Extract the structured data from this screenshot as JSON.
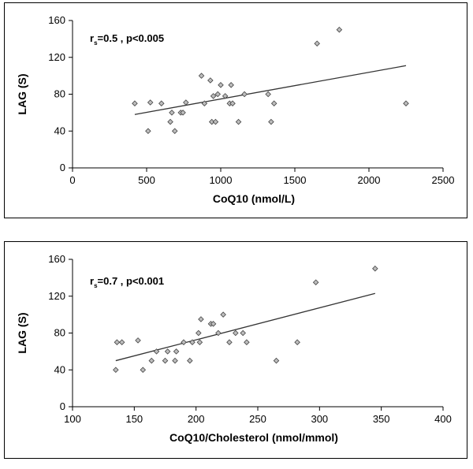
{
  "chart_data": [
    {
      "type": "scatter",
      "xlabel": "CoQ10 (nmol/L)",
      "ylabel": "LAG (S)",
      "annotation": {
        "r_main": "r",
        "r_sub": "s",
        "text": "=0.5 ,  p<0.005"
      },
      "xlim": [
        0,
        2500
      ],
      "ylim": [
        0,
        160
      ],
      "xticks": [
        0,
        500,
        1000,
        1500,
        2000,
        2500
      ],
      "yticks": [
        0,
        40,
        80,
        120,
        160
      ],
      "grid": false,
      "trendline": {
        "x": [
          420,
          2250
        ],
        "y": [
          58,
          111
        ]
      },
      "points": [
        {
          "x": 420,
          "y": 70
        },
        {
          "x": 510,
          "y": 40
        },
        {
          "x": 525,
          "y": 71
        },
        {
          "x": 600,
          "y": 70
        },
        {
          "x": 660,
          "y": 50
        },
        {
          "x": 670,
          "y": 60
        },
        {
          "x": 690,
          "y": 40
        },
        {
          "x": 730,
          "y": 60
        },
        {
          "x": 745,
          "y": 60
        },
        {
          "x": 765,
          "y": 71
        },
        {
          "x": 870,
          "y": 100
        },
        {
          "x": 890,
          "y": 70
        },
        {
          "x": 930,
          "y": 95
        },
        {
          "x": 940,
          "y": 50
        },
        {
          "x": 950,
          "y": 78
        },
        {
          "x": 965,
          "y": 50
        },
        {
          "x": 980,
          "y": 80
        },
        {
          "x": 1000,
          "y": 90
        },
        {
          "x": 1030,
          "y": 78
        },
        {
          "x": 1060,
          "y": 70
        },
        {
          "x": 1070,
          "y": 90
        },
        {
          "x": 1080,
          "y": 70
        },
        {
          "x": 1120,
          "y": 50
        },
        {
          "x": 1160,
          "y": 80
        },
        {
          "x": 1320,
          "y": 80
        },
        {
          "x": 1340,
          "y": 50
        },
        {
          "x": 1360,
          "y": 70
        },
        {
          "x": 1650,
          "y": 135
        },
        {
          "x": 1800,
          "y": 150
        },
        {
          "x": 2250,
          "y": 70
        }
      ]
    },
    {
      "type": "scatter",
      "xlabel": "CoQ10/Cholesterol (nmol/mmol)",
      "ylabel": "LAG (S)",
      "annotation": {
        "r_main": "r",
        "r_sub": "s",
        "text": "=0.7 ,  p<0.001"
      },
      "xlim": [
        100,
        400
      ],
      "ylim": [
        0,
        160
      ],
      "xticks": [
        100,
        150,
        200,
        250,
        300,
        350,
        400
      ],
      "yticks": [
        0,
        40,
        80,
        120,
        160
      ],
      "grid": false,
      "trendline": {
        "x": [
          135,
          345
        ],
        "y": [
          50,
          123
        ]
      },
      "points": [
        {
          "x": 135,
          "y": 40
        },
        {
          "x": 136,
          "y": 70
        },
        {
          "x": 140,
          "y": 70
        },
        {
          "x": 153,
          "y": 72
        },
        {
          "x": 157,
          "y": 40
        },
        {
          "x": 164,
          "y": 50
        },
        {
          "x": 168,
          "y": 60
        },
        {
          "x": 175,
          "y": 50
        },
        {
          "x": 177,
          "y": 60
        },
        {
          "x": 183,
          "y": 50
        },
        {
          "x": 184,
          "y": 60
        },
        {
          "x": 190,
          "y": 70
        },
        {
          "x": 195,
          "y": 50
        },
        {
          "x": 197,
          "y": 70
        },
        {
          "x": 202,
          "y": 80
        },
        {
          "x": 203,
          "y": 70
        },
        {
          "x": 204,
          "y": 95
        },
        {
          "x": 212,
          "y": 90
        },
        {
          "x": 214,
          "y": 90
        },
        {
          "x": 218,
          "y": 80
        },
        {
          "x": 222,
          "y": 100
        },
        {
          "x": 227,
          "y": 70
        },
        {
          "x": 232,
          "y": 80
        },
        {
          "x": 238,
          "y": 80
        },
        {
          "x": 241,
          "y": 70
        },
        {
          "x": 265,
          "y": 50
        },
        {
          "x": 282,
          "y": 70
        },
        {
          "x": 297,
          "y": 135
        },
        {
          "x": 345,
          "y": 150
        }
      ]
    }
  ]
}
